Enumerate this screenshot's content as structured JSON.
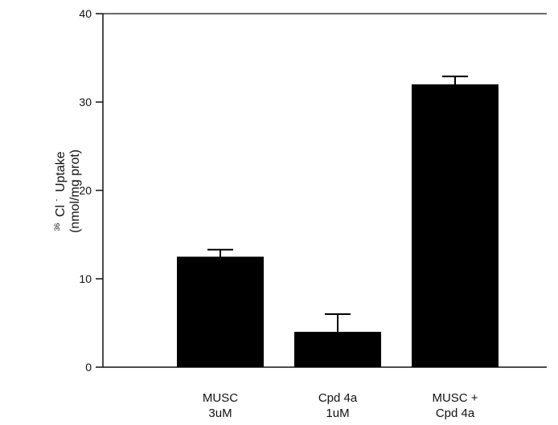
{
  "chart_data": {
    "type": "bar",
    "categories": [
      [
        "MUSC",
        "3uM"
      ],
      [
        "Cpd 4a",
        "1uM"
      ],
      [
        "MUSC +",
        "Cpd 4a"
      ]
    ],
    "values": [
      12.5,
      4.0,
      32.0
    ],
    "errors": [
      0.8,
      2.0,
      0.9
    ],
    "title": "",
    "xlabel": "",
    "ylabel_line1": "Cl",
    "ylabel_super_isotope": "36",
    "ylabel_super_charge": "-",
    "ylabel_line1_rest": "Uptake",
    "ylabel_line2": "(nmol/mg prot)",
    "ylim": [
      0,
      40
    ],
    "yticks": [
      0,
      10,
      20,
      30,
      40
    ],
    "bar_color": "#000000",
    "grid": false,
    "legend": "none"
  }
}
